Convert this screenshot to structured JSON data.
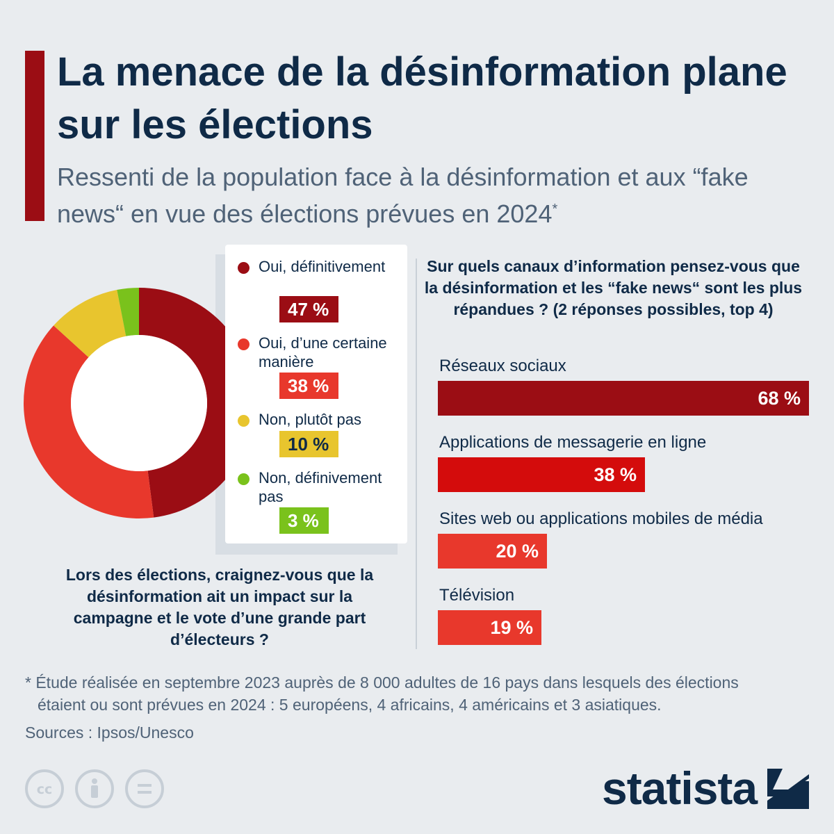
{
  "title": "La menace de la désinformation plane sur les élections",
  "subtitle": "Ressenti de la population face à la désinformation et aux “fake news“ en vue des élections prévues en 2024",
  "subtitle_mark": "*",
  "colors": {
    "accent": "#9b0d14",
    "navy": "#0f2a47",
    "oui_definitivement": "#9b0d14",
    "oui_certaine": "#e8382c",
    "non_plutot": "#e8c52e",
    "non_definitivement": "#7ac21c",
    "bar_1": "#9b0d14",
    "bar_2": "#d40c0c",
    "bar_3": "#e8382c",
    "bar_4": "#e8382c"
  },
  "chart_data": [
    {
      "type": "pie",
      "style": "donut",
      "title": "Lors des élections, craignez-vous que la désinformation ait un impact sur la campagne et le vote d’une grande part d’électeurs ?",
      "categories": [
        "Oui, définitivement",
        "Oui, d’une certaine manière",
        "Non, plutôt pas",
        "Non, définivement pas"
      ],
      "values": [
        47,
        38,
        10,
        3
      ],
      "value_labels": [
        "47 %",
        "38 %",
        "10 %",
        "3 %"
      ],
      "colors": [
        "#9b0d14",
        "#e8382c",
        "#e8c52e",
        "#7ac21c"
      ]
    },
    {
      "type": "bar",
      "orientation": "horizontal",
      "title": "Sur quels canaux d’information pensez-vous que la désinformation et les “fake news“ sont les plus répandues ? (2 réponses possibles, top 4)",
      "categories": [
        "Réseaux sociaux",
        "Applications de messagerie en ligne",
        "Sites web ou applications mobiles de média",
        "Télévision"
      ],
      "values": [
        68,
        38,
        20,
        19
      ],
      "value_labels": [
        "68 %",
        "38 %",
        "20 %",
        "19 %"
      ],
      "xlim": [
        0,
        68
      ],
      "colors": [
        "#9b0d14",
        "#d40c0c",
        "#e8382c",
        "#e8382c"
      ]
    }
  ],
  "footnote": {
    "line1": "* Étude réalisée en septembre 2023 auprès de 8 000 adultes de 16 pays dans lesquels des élections",
    "line2": "étaient ou sont prévues en 2024 : 5 européens, 4 africains, 4 américains et 3 asiatiques."
  },
  "sources": "Sources : Ipsos/Unesco",
  "license_icons": [
    "cc-icon",
    "attribution-icon",
    "no-derivatives-icon"
  ],
  "license_glyphs": [
    "cc",
    "="
  ],
  "brand": "statista"
}
